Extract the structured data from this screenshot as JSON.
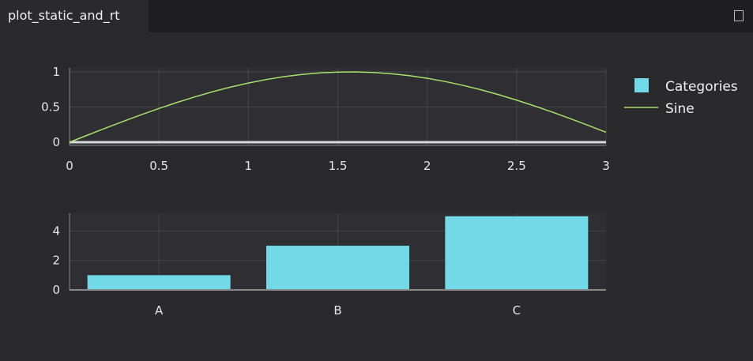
{
  "tab": {
    "title": "plot_static_and_rt"
  },
  "colors": {
    "sine": "#a6e36b",
    "bars": "#72d9e6",
    "grid": "#45444a",
    "axis": "#8a8a8a",
    "zero_line": "#d8d8d8"
  },
  "chart_data": [
    {
      "type": "line",
      "xlim": [
        0,
        3
      ],
      "ylim": [
        0,
        1
      ],
      "grid": true,
      "x_ticks": [
        "0",
        "0.5",
        "1",
        "1.5",
        "2",
        "2.5",
        "3"
      ],
      "y_ticks": [
        "0",
        "0.5",
        "1"
      ],
      "series": [
        {
          "name": "Sine",
          "x": [
            0,
            0.1,
            0.2,
            0.3,
            0.4,
            0.5,
            0.6,
            0.7,
            0.8,
            0.9,
            1.0,
            1.1,
            1.2,
            1.3,
            1.4,
            1.5,
            1.6,
            1.7,
            1.8,
            1.9,
            2.0,
            2.1,
            2.2,
            2.3,
            2.4,
            2.5,
            2.6,
            2.7,
            2.8,
            2.9,
            3.0
          ],
          "y": [
            0,
            0.0998,
            0.1987,
            0.2955,
            0.3894,
            0.4794,
            0.5646,
            0.6442,
            0.7174,
            0.7833,
            0.8415,
            0.8912,
            0.932,
            0.9636,
            0.9854,
            0.9975,
            0.9996,
            0.9917,
            0.9738,
            0.9463,
            0.9093,
            0.8632,
            0.8085,
            0.7457,
            0.6755,
            0.5985,
            0.5155,
            0.4274,
            0.335,
            0.2392,
            0.1411
          ]
        }
      ],
      "legend": "right"
    },
    {
      "type": "bar",
      "categories": [
        "A",
        "B",
        "C"
      ],
      "series": [
        {
          "name": "Categories",
          "values": [
            1,
            3,
            5
          ]
        }
      ],
      "y_ticks": [
        "0",
        "2",
        "4"
      ],
      "ylim": [
        0,
        5.2
      ],
      "grid": true
    }
  ]
}
